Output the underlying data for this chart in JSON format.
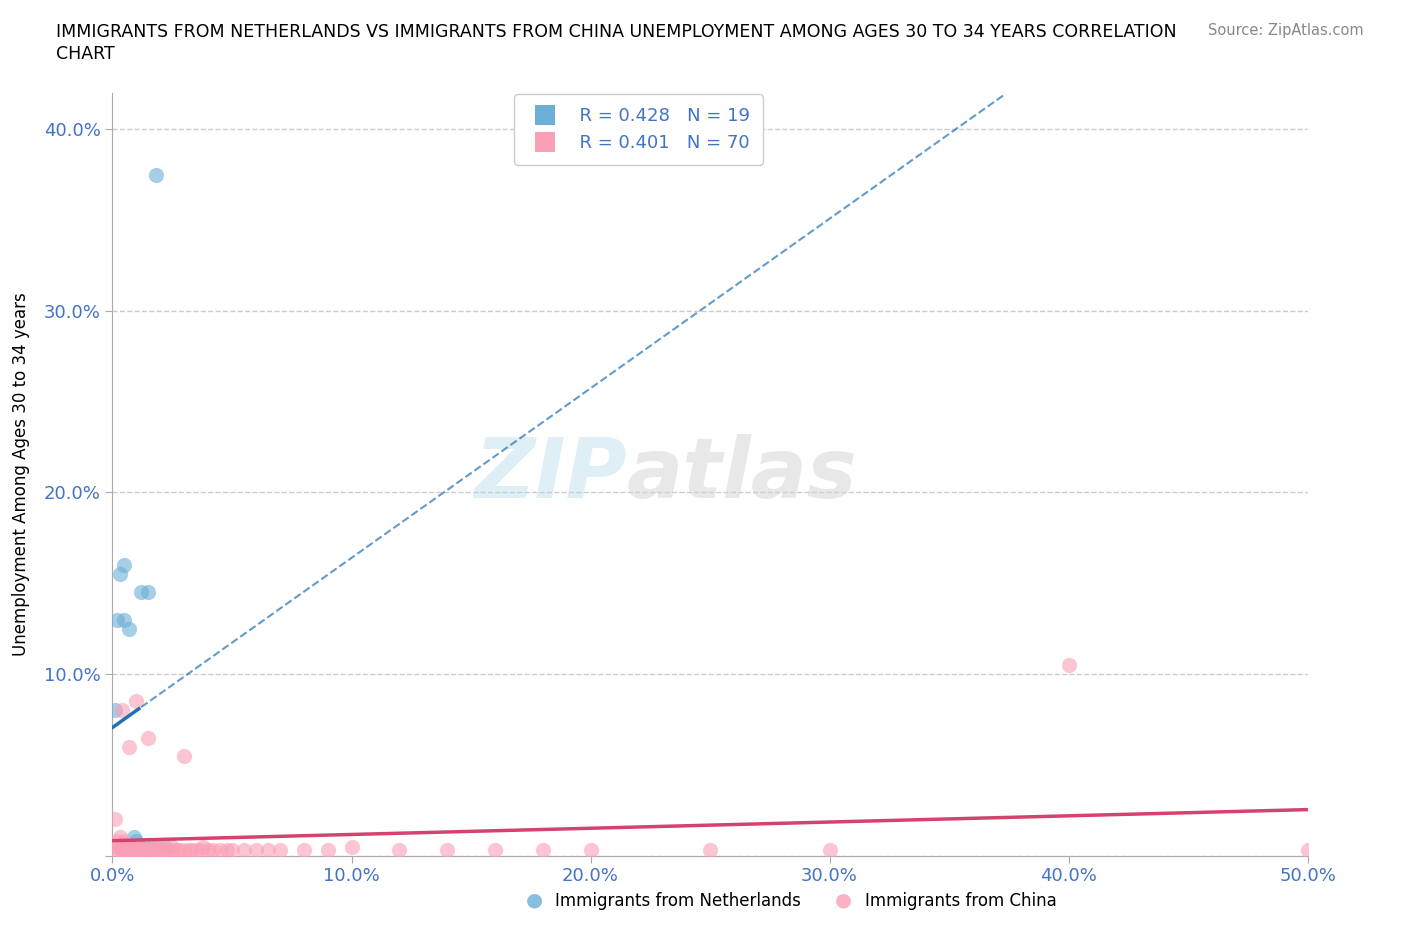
{
  "title_line1": "IMMIGRANTS FROM NETHERLANDS VS IMMIGRANTS FROM CHINA UNEMPLOYMENT AMONG AGES 30 TO 34 YEARS CORRELATION",
  "title_line2": "CHART",
  "source": "Source: ZipAtlas.com",
  "ylabel": "Unemployment Among Ages 30 to 34 years",
  "xlim": [
    0.0,
    0.5
  ],
  "ylim": [
    0.0,
    0.42
  ],
  "xticks": [
    0.0,
    0.1,
    0.2,
    0.3,
    0.4,
    0.5
  ],
  "yticks": [
    0.0,
    0.1,
    0.2,
    0.3,
    0.4
  ],
  "ytick_labels": [
    "",
    "10.0%",
    "20.0%",
    "30.0%",
    "40.0%"
  ],
  "xtick_labels": [
    "0.0%",
    "10.0%",
    "20.0%",
    "30.0%",
    "40.0%",
    "50.0%"
  ],
  "legend_blue_r": "R = 0.428",
  "legend_blue_n": "N = 19",
  "legend_pink_r": "R = 0.401",
  "legend_pink_n": "N = 70",
  "blue_color": "#6baed6",
  "pink_color": "#fa9fb5",
  "blue_line_color": "#2171b5",
  "pink_line_color": "#d4436e",
  "watermark_zip": "ZIP",
  "watermark_atlas": "atlas",
  "nl_x": [
    0.001,
    0.002,
    0.003,
    0.004,
    0.005,
    0.005,
    0.006,
    0.007,
    0.007,
    0.008,
    0.009,
    0.01,
    0.011,
    0.012,
    0.013,
    0.015,
    0.017,
    0.018,
    0.022
  ],
  "nl_y": [
    0.08,
    0.13,
    0.155,
    0.005,
    0.13,
    0.16,
    0.005,
    0.005,
    0.125,
    0.005,
    0.01,
    0.008,
    0.006,
    0.145,
    0.005,
    0.145,
    0.005,
    0.375,
    0.005
  ],
  "cn_x": [
    0.001,
    0.001,
    0.002,
    0.002,
    0.003,
    0.003,
    0.003,
    0.004,
    0.004,
    0.004,
    0.005,
    0.005,
    0.005,
    0.006,
    0.006,
    0.007,
    0.007,
    0.008,
    0.008,
    0.009,
    0.01,
    0.01,
    0.01,
    0.011,
    0.012,
    0.012,
    0.013,
    0.015,
    0.015,
    0.016,
    0.017,
    0.018,
    0.018,
    0.019,
    0.02,
    0.02,
    0.022,
    0.023,
    0.025,
    0.025,
    0.027,
    0.028,
    0.03,
    0.03,
    0.032,
    0.033,
    0.035,
    0.037,
    0.038,
    0.04,
    0.042,
    0.045,
    0.048,
    0.05,
    0.055,
    0.06,
    0.065,
    0.07,
    0.08,
    0.09,
    0.1,
    0.12,
    0.14,
    0.16,
    0.18,
    0.2,
    0.25,
    0.3,
    0.4,
    0.5
  ],
  "cn_y": [
    0.02,
    0.005,
    0.003,
    0.008,
    0.003,
    0.005,
    0.01,
    0.003,
    0.005,
    0.08,
    0.003,
    0.005,
    0.008,
    0.003,
    0.005,
    0.003,
    0.06,
    0.003,
    0.005,
    0.003,
    0.003,
    0.005,
    0.085,
    0.003,
    0.003,
    0.005,
    0.003,
    0.003,
    0.065,
    0.003,
    0.003,
    0.003,
    0.005,
    0.003,
    0.003,
    0.005,
    0.003,
    0.003,
    0.003,
    0.005,
    0.003,
    0.003,
    0.003,
    0.055,
    0.003,
    0.003,
    0.003,
    0.003,
    0.005,
    0.003,
    0.003,
    0.003,
    0.003,
    0.003,
    0.003,
    0.003,
    0.003,
    0.003,
    0.003,
    0.003,
    0.005,
    0.003,
    0.003,
    0.003,
    0.003,
    0.003,
    0.003,
    0.003,
    0.105,
    0.003
  ]
}
